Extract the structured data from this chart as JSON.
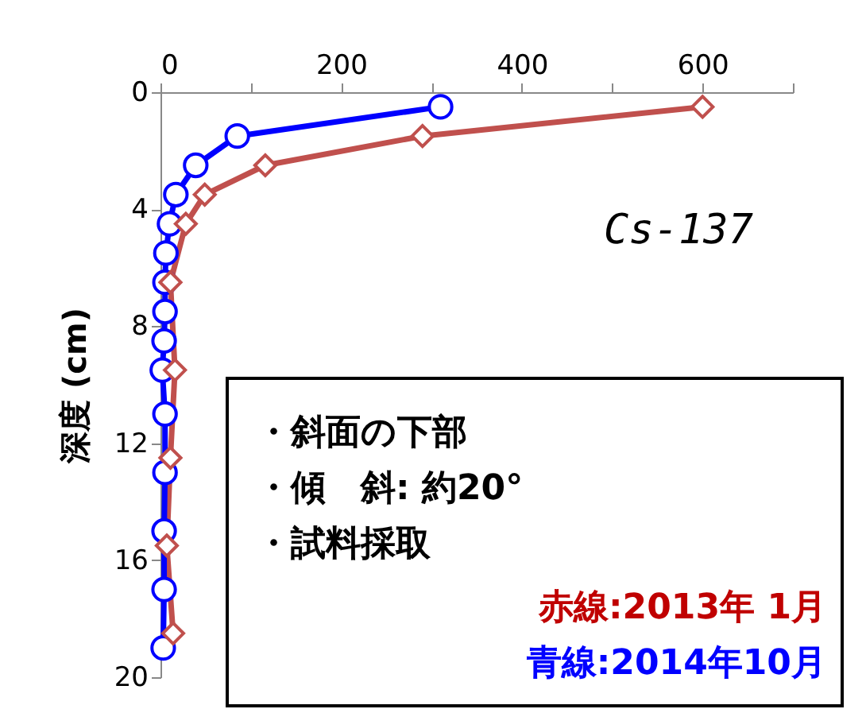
{
  "chart_data": {
    "type": "line",
    "ylabel": "深度 (cm)",
    "xlim": [
      0,
      700
    ],
    "xticks": [
      0,
      {
        "value": 100,
        "label": null
      },
      200,
      {
        "value": 300,
        "label": null
      },
      400,
      {
        "value": 500,
        "label": null
      },
      600,
      {
        "value": 700,
        "label": null
      }
    ],
    "ylim": [
      20,
      0
    ],
    "yticks": [
      0,
      4,
      8,
      12,
      16,
      20
    ],
    "grid": false,
    "legend": "bottom right",
    "line_style": "solid",
    "series": [
      {
        "name": "赤線:2013年 1月",
        "color": "#c0504d",
        "marker": "diamond",
        "x": [
          600,
          290,
          116,
          49,
          28,
          11,
          16,
          11,
          7,
          14
        ],
        "values": [
          0.5,
          1.5,
          2.5,
          3.5,
          4.5,
          6.5,
          9.5,
          12.5,
          15.5,
          18.5
        ]
      },
      {
        "name": "青線:2014年10月",
        "color": "#0000ff",
        "marker": "circle",
        "x": [
          310,
          85,
          39,
          17,
          10,
          6,
          5,
          5,
          4,
          2,
          5,
          5,
          4,
          4,
          3
        ],
        "values": [
          0.5,
          1.5,
          2.5,
          3.5,
          4.5,
          5.5,
          6.5,
          7.5,
          8.5,
          9.5,
          11,
          13,
          15,
          17,
          19
        ]
      }
    ],
    "annotations": [
      "Cs-137",
      "・斜面の下部",
      "・傾　斜: 約20°",
      "・試料採取"
    ]
  }
}
